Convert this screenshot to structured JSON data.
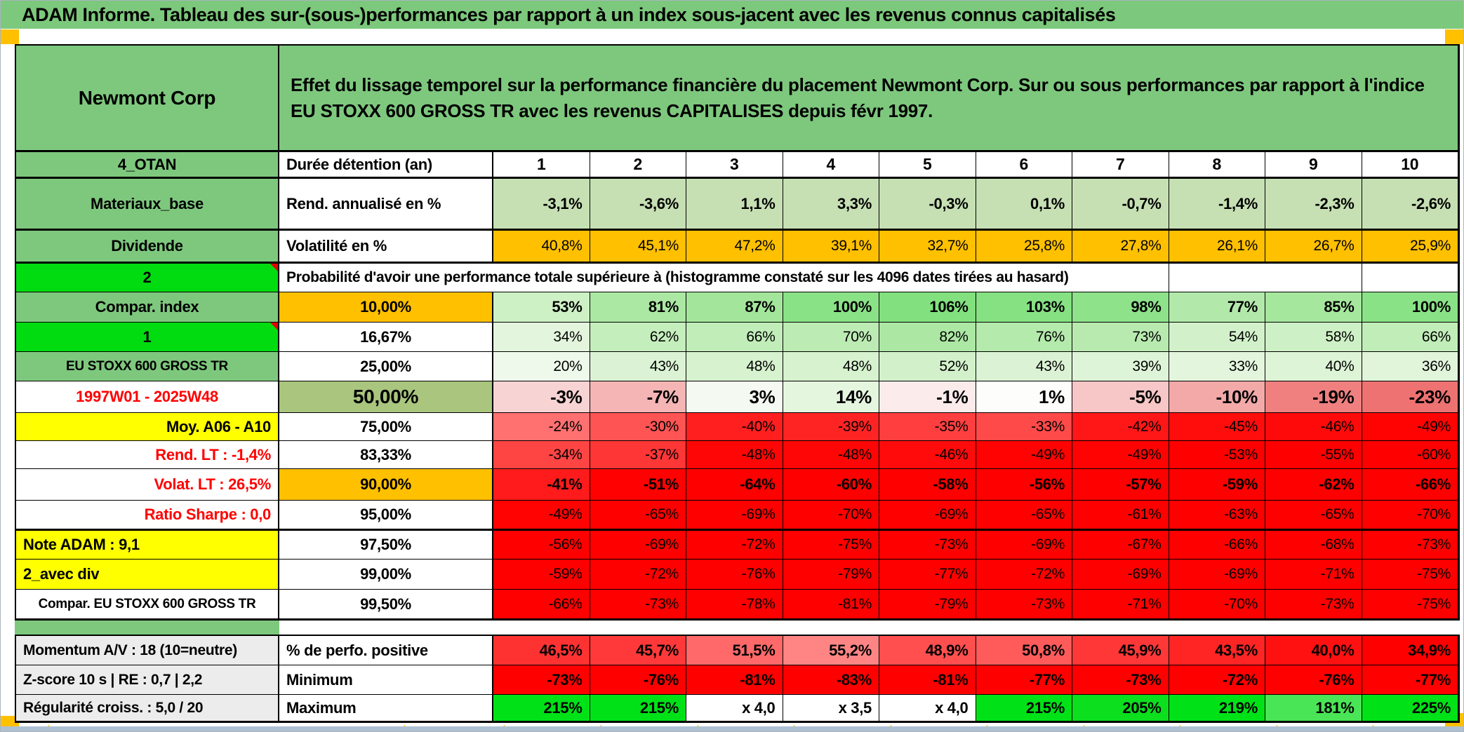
{
  "title": "ADAM Informe. Tableau des sur-(sous-)performances par rapport à un index sous-jacent avec les revenus connus capitalisés",
  "header": {
    "asset": "Newmont Corp",
    "description": "Effet du lissage temporel sur la performance financière du placement Newmont Corp. Sur ou sous performances par rapport à l'indice EU STOXX 600 GROSS TR avec les revenus CAPITALISES depuis févr 1997."
  },
  "colors": {
    "title_green": "#7CC87C",
    "label_green": "#7EC87E",
    "bright_green": "#00DC10",
    "orange": "#FFC000",
    "yellow": "#FFFF00",
    "grey_label": "#ECECEC",
    "half_head_green": "#A9C57E",
    "light_green_row": "#C6E0B4",
    "pure_red": "#FF0000",
    "max_green": "#00E217",
    "window_edge": "#AEC1D3"
  },
  "icons": {
    "column_marker": "▲",
    "comment_marker": "red-corner-triangle"
  },
  "table": {
    "rows": [
      {
        "id": "duree",
        "thick": true,
        "label": {
          "text": "4_OTAN",
          "style": "green",
          "align": "center"
        },
        "head": {
          "text": "Durée détention (an)",
          "align": "left"
        },
        "cells": {
          "values": [
            "1",
            "2",
            "3",
            "4",
            "5",
            "6",
            "7",
            "8",
            "9",
            "10"
          ],
          "bg": "#FFFFFF",
          "bold": true,
          "align": "center",
          "size": 23
        }
      },
      {
        "id": "rend",
        "thick": true,
        "label": {
          "text": "Materiaux_base",
          "style": "green",
          "align": "center"
        },
        "head": {
          "text": "Rend. annualisé en %",
          "align": "left"
        },
        "cells": {
          "values": [
            "-3,1%",
            "-3,6%",
            "1,1%",
            "3,3%",
            "-0,3%",
            "0,1%",
            "-0,7%",
            "-1,4%",
            "-2,3%",
            "-2,6%"
          ],
          "bg": "#C6E0B4",
          "bold": true,
          "size": 22
        }
      },
      {
        "id": "volat",
        "thick": true,
        "label": {
          "text": "Dividende",
          "style": "green",
          "align": "center"
        },
        "head": {
          "text": "Volatilité en %",
          "align": "left"
        },
        "cells": {
          "values": [
            "40,8%",
            "45,1%",
            "47,2%",
            "39,1%",
            "32,7%",
            "25,8%",
            "27,8%",
            "26,1%",
            "26,7%",
            "25,9%"
          ],
          "bg": "#FFC000",
          "bold": false,
          "size": 21
        }
      },
      {
        "id": "prob",
        "thick": true,
        "type": "prob",
        "label": {
          "text": "2",
          "style": "bgreen",
          "align": "center",
          "triangle": true
        },
        "prob_text": "Probabilité d'avoir une performance totale supérieure à (histogramme constaté sur les 4096 dates tirées au hasard)"
      },
      {
        "id": "p10",
        "label": {
          "text": "Compar. index",
          "style": "green",
          "align": "center"
        },
        "head": {
          "text": "10,00%",
          "align": "center",
          "bg": "#FFC000"
        },
        "cells": {
          "values": [
            "53%",
            "81%",
            "87%",
            "100%",
            "106%",
            "103%",
            "98%",
            "77%",
            "85%",
            "100%"
          ],
          "bgs": [
            "#CDF0C5",
            "#ABE8A3",
            "#A3E69B",
            "#8AE287",
            "#82E07F",
            "#86E183",
            "#8EE28A",
            "#B2E9AA",
            "#A6E79E",
            "#8AE287"
          ],
          "bold": true,
          "size": 22
        }
      },
      {
        "id": "p1667",
        "label": {
          "text": "1",
          "style": "bgreen",
          "align": "center",
          "triangle": true
        },
        "head": {
          "text": "16,67%",
          "align": "center"
        },
        "cells": {
          "values": [
            "34%",
            "62%",
            "66%",
            "70%",
            "82%",
            "76%",
            "73%",
            "54%",
            "58%",
            "66%"
          ],
          "bgs": [
            "#E3F5DD",
            "#C5EEBD",
            "#C1EDB9",
            "#BCECB4",
            "#ACE8A4",
            "#B4EAAC",
            "#B8EAB0",
            "#D2F1CA",
            "#CEF0C6",
            "#C1EDB9"
          ],
          "bold": false,
          "size": 21
        }
      },
      {
        "id": "p25",
        "label": {
          "text": "EU STOXX 600 GROSS TR",
          "style": "green",
          "align": "center",
          "size": 19
        },
        "head": {
          "text": "25,00%",
          "align": "center"
        },
        "cells": {
          "values": [
            "20%",
            "43%",
            "48%",
            "48%",
            "52%",
            "43%",
            "39%",
            "33%",
            "40%",
            "36%"
          ],
          "bgs": [
            "#EFF9EB",
            "#DBF3D4",
            "#D6F2CE",
            "#D6F2CE",
            "#D2F1CA",
            "#DBF3D4",
            "#DEF4D8",
            "#E4F5DE",
            "#DDF4D6",
            "#E1F5DB"
          ],
          "bold": false,
          "size": 21
        }
      },
      {
        "id": "p50",
        "label": {
          "text": "1997W01 - 2025W48",
          "style": "red",
          "align": "center"
        },
        "head": {
          "text": "50,00%",
          "align": "center",
          "bg": "#A9C57E",
          "size": 28
        },
        "cells": {
          "values": [
            "-3%",
            "-7%",
            "3%",
            "14%",
            "-1%",
            "1%",
            "-5%",
            "-10%",
            "-19%",
            "-23%"
          ],
          "bgs": [
            "#F8D3D3",
            "#F5B5B5",
            "#F4FAF1",
            "#E5F6DF",
            "#FCEBEB",
            "#FDFDFB",
            "#F7C6C6",
            "#F4A9A9",
            "#F08080",
            "#EE7272"
          ],
          "bold": true,
          "size": 26
        }
      },
      {
        "id": "p75",
        "label": {
          "text": "Moy. A06 - A10",
          "style": "yellow",
          "align": "right"
        },
        "head": {
          "text": "75,00%",
          "align": "center"
        },
        "cells": {
          "values": [
            "-24%",
            "-30%",
            "-40%",
            "-39%",
            "-35%",
            "-33%",
            "-42%",
            "-45%",
            "-46%",
            "-49%"
          ],
          "bgs": [
            "#FF7070",
            "#FF5454",
            "#FF1F1F",
            "#FF2424",
            "#FF3F3F",
            "#FF4A4A",
            "#FF1717",
            "#FF0D0D",
            "#FF0A0A",
            "#FF0303"
          ],
          "bold": false,
          "size": 21
        }
      },
      {
        "id": "p8333",
        "label": {
          "text": "Rend. LT :   -1,4%",
          "style": "red",
          "align": "right"
        },
        "head": {
          "text": "83,33%",
          "align": "center"
        },
        "cells": {
          "values": [
            "-34%",
            "-37%",
            "-48%",
            "-48%",
            "-46%",
            "-49%",
            "-49%",
            "-53%",
            "-55%",
            "-60%"
          ],
          "bgs": [
            "#FF4444",
            "#FF3636",
            "#FF0606",
            "#FF0606",
            "#FF0B0B",
            "#FF0202",
            "#FF0202",
            "#FF0000",
            "#FF0000",
            "#FF0000"
          ],
          "bold": false,
          "size": 21
        }
      },
      {
        "id": "p90",
        "label": {
          "text": "Volat. LT :   26,5%",
          "style": "red",
          "align": "right"
        },
        "head": {
          "text": "90,00%",
          "align": "center",
          "bg": "#FFC000"
        },
        "cells": {
          "values": [
            "-41%",
            "-51%",
            "-64%",
            "-60%",
            "-58%",
            "-56%",
            "-57%",
            "-59%",
            "-62%",
            "-66%"
          ],
          "bgs": [
            "#FF1B1B",
            "#FF0101",
            "#FF0000",
            "#FF0000",
            "#FF0000",
            "#FF0000",
            "#FF0000",
            "#FF0000",
            "#FF0000",
            "#FF0000"
          ],
          "bold": true,
          "size": 22
        }
      },
      {
        "id": "p95",
        "label": {
          "text": "Ratio Sharpe :   0,0",
          "style": "red",
          "align": "right"
        },
        "head": {
          "text": "95,00%",
          "align": "center"
        },
        "cells": {
          "values": [
            "-49%",
            "-65%",
            "-69%",
            "-70%",
            "-69%",
            "-65%",
            "-61%",
            "-63%",
            "-65%",
            "-70%"
          ],
          "bgs": [
            "#FF0303",
            "#FF0000",
            "#FF0000",
            "#FF0000",
            "#FF0000",
            "#FF0000",
            "#FF0000",
            "#FF0000",
            "#FF0000",
            "#FF0000"
          ],
          "bold": false,
          "size": 21
        }
      },
      {
        "id": "p975",
        "thick": true,
        "label": {
          "text": "Note ADAM : 9,1",
          "style": "yellow",
          "align": "left"
        },
        "head": {
          "text": "97,50%",
          "align": "center"
        },
        "cells": {
          "values": [
            "-56%",
            "-69%",
            "-72%",
            "-75%",
            "-73%",
            "-69%",
            "-67%",
            "-66%",
            "-68%",
            "-73%"
          ],
          "bg": "#FF0000",
          "bold": false,
          "size": 21
        }
      },
      {
        "id": "p99",
        "label": {
          "text": "2_avec div",
          "style": "yellow",
          "align": "left"
        },
        "head": {
          "text": "99,00%",
          "align": "center"
        },
        "cells": {
          "values": [
            "-59%",
            "-72%",
            "-76%",
            "-79%",
            "-77%",
            "-72%",
            "-69%",
            "-69%",
            "-71%",
            "-75%"
          ],
          "bg": "#FF0000",
          "bold": false,
          "size": 21
        }
      },
      {
        "id": "p995",
        "label": {
          "text": "Compar. EU STOXX 600 GROSS TR",
          "style": "white",
          "align": "center",
          "size": 19
        },
        "head": {
          "text": "99,50%",
          "align": "center"
        },
        "cells": {
          "values": [
            "-66%",
            "-73%",
            "-78%",
            "-81%",
            "-79%",
            "-73%",
            "-71%",
            "-70%",
            "-73%",
            "-75%"
          ],
          "bg": "#FF0000",
          "bold": false,
          "size": 21
        }
      }
    ]
  },
  "bottom": {
    "rows": [
      {
        "id": "perf",
        "label": {
          "text": "Momentum A/V : 18 (10=neutre)",
          "style": "grey",
          "align": "left",
          "size": 21
        },
        "head": {
          "text": "% de perfo. positive",
          "align": "left"
        },
        "cells": {
          "values": [
            "46,5%",
            "45,7%",
            "51,5%",
            "55,2%",
            "48,9%",
            "50,8%",
            "45,9%",
            "43,5%",
            "40,0%",
            "34,9%"
          ],
          "bgs": [
            "#FF3232",
            "#FF3939",
            "#FF6969",
            "#FF8585",
            "#FF4F4F",
            "#FF5B5B",
            "#FF3737",
            "#FF2525",
            "#FF1111",
            "#FF0000"
          ],
          "bold": true,
          "size": 22
        }
      },
      {
        "id": "min",
        "label": {
          "text": "Z-score 10 s | RE : 0,7 | 2,2",
          "style": "grey",
          "align": "left",
          "size": 21
        },
        "head": {
          "text": "Minimum",
          "align": "left"
        },
        "cells": {
          "values": [
            "-73%",
            "-76%",
            "-81%",
            "-83%",
            "-81%",
            "-77%",
            "-73%",
            "-72%",
            "-76%",
            "-77%"
          ],
          "bg": "#FF0000",
          "bold": true,
          "size": 22
        }
      },
      {
        "id": "max",
        "label": {
          "text": "Régularité croiss. : 5,0 / 20",
          "style": "grey",
          "align": "left",
          "size": 21
        },
        "head": {
          "text": "Maximum",
          "align": "left"
        },
        "cells": {
          "values": [
            "215%",
            "215%",
            "x 4,0",
            "x 3,5",
            "x 4,0",
            "215%",
            "205%",
            "219%",
            "181%",
            "225%"
          ],
          "bgs": [
            "#00E217",
            "#00E217",
            "#FFFFFF",
            "#FFFFFF",
            "#FFFFFF",
            "#00E217",
            "#0CDF1E",
            "#00E217",
            "#4AE556",
            "#00E217"
          ],
          "bold": true,
          "size": 22
        }
      }
    ]
  }
}
